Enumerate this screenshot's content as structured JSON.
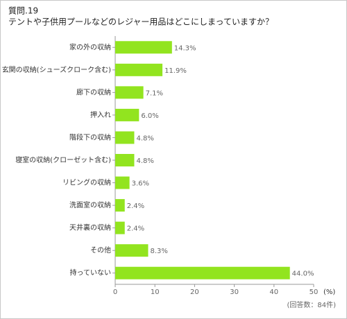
{
  "chart_data": {
    "type": "bar",
    "orientation": "horizontal",
    "title": "質問.19",
    "subtitle": "テントや子供用プールなどのレジャー用品はどこにしまっていますか？",
    "categories": [
      "家の外の収納",
      "玄関の収納(シューズクローク含む)",
      "廊下の収納",
      "押入れ",
      "階段下の収納",
      "寝室の収納(クローゼット含む)",
      "リビングの収納",
      "洗面室の収納",
      "天井裏の収納",
      "その他",
      "持っていない"
    ],
    "values": [
      14.3,
      11.9,
      7.1,
      6.0,
      4.8,
      4.8,
      3.6,
      2.4,
      2.4,
      8.3,
      44.0
    ],
    "value_labels": [
      "14.3%",
      "11.9%",
      "7.1%",
      "6.0%",
      "4.8%",
      "4.8%",
      "3.6%",
      "2.4%",
      "2.4%",
      "8.3%",
      "44.0%"
    ],
    "color": "#92e41f",
    "xlim": [
      0,
      50
    ],
    "xticks": [
      0,
      10,
      20,
      30,
      40,
      50
    ],
    "xlabel": "(%)",
    "note": "(回答数：84件)"
  }
}
